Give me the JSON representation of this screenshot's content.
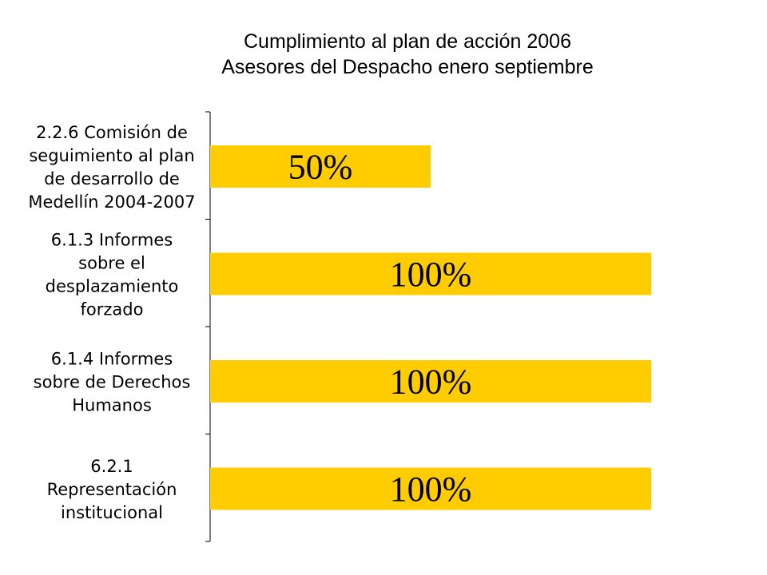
{
  "chart_data": {
    "type": "bar",
    "orientation": "horizontal",
    "title": "Cumplimiento al plan de acción 2006",
    "subtitle": "Asesores del Despacho enero septiembre",
    "categories": [
      "2.2.6 Comisión de seguimiento al plan de desarrollo de Medellín 2004-2007",
      "6.1.3 Informes sobre el desplazamiento forzado",
      "6.1.4 Informes sobre de Derechos Humanos",
      "6.2.1 Representación institucional"
    ],
    "category_lines": [
      [
        "2.2.6 Comisión de",
        "seguimiento al plan",
        "de desarrollo de",
        "Medellín 2004-2007"
      ],
      [
        "6.1.3 Informes",
        "sobre el",
        "desplazamiento",
        "forzado"
      ],
      [
        "6.1.4 Informes",
        "sobre de Derechos",
        "Humanos"
      ],
      [
        "6.2.1",
        "Representación",
        "institucional"
      ]
    ],
    "values": [
      50,
      100,
      100,
      100
    ],
    "data_labels": [
      "50%",
      "100%",
      "100%",
      "100%"
    ],
    "xlim": [
      0,
      100
    ],
    "unit": "%",
    "bar_color": "#FFCC00",
    "grid": false,
    "legend": "none"
  }
}
